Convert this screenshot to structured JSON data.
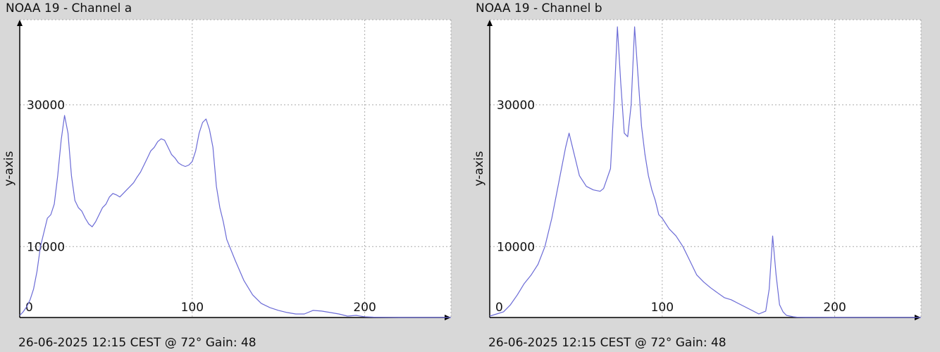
{
  "charts": [
    {
      "title": "NOAA 19 - Channel a",
      "footer": "26-06-2025 12:15 CEST @ 72° Gain: 48",
      "chart_data": {
        "type": "line",
        "title": "NOAA 19 - Channel a",
        "xlabel": "",
        "ylabel": "y-axis",
        "xlim": [
          0,
          250
        ],
        "ylim": [
          0,
          42000
        ],
        "grid": true,
        "x_ticks": [
          0,
          100,
          200
        ],
        "y_ticks": [
          10000,
          30000
        ],
        "color": "#6b6bd6",
        "series": [
          {
            "x": [
              0,
              2,
              4,
              6,
              8,
              10,
              12,
              14,
              16,
              18,
              20,
              22,
              24,
              26,
              28,
              30,
              32,
              34,
              36,
              38,
              40,
              42,
              44,
              46,
              48,
              50,
              52,
              54,
              56,
              58,
              60,
              62,
              64,
              66,
              68,
              70,
              72,
              74,
              76,
              78,
              80,
              82,
              84,
              86,
              88,
              90,
              92,
              94,
              96,
              98,
              100,
              102,
              104,
              106,
              108,
              110,
              112,
              114,
              116,
              118,
              120,
              125,
              130,
              135,
              140,
              145,
              150,
              155,
              160,
              165,
              170,
              175,
              180,
              185,
              190,
              195,
              200,
              205,
              210,
              215,
              220,
              225,
              230,
              235,
              240,
              245,
              250
            ],
            "y": [
              300,
              800,
              1500,
              2500,
              4000,
              6500,
              10000,
              12000,
              14000,
              14500,
              16000,
              20000,
              25000,
              28500,
              26000,
              20000,
              16500,
              15500,
              15000,
              14000,
              13200,
              12800,
              13500,
              14500,
              15500,
              16000,
              17000,
              17500,
              17300,
              17000,
              17500,
              18000,
              18500,
              19000,
              19800,
              20500,
              21500,
              22500,
              23500,
              24000,
              24800,
              25200,
              25000,
              24000,
              23000,
              22500,
              21800,
              21500,
              21300,
              21500,
              22000,
              23500,
              26000,
              27500,
              28000,
              26500,
              24000,
              18500,
              15500,
              13500,
              11000,
              8000,
              5200,
              3200,
              2000,
              1400,
              1000,
              700,
              500,
              500,
              1000,
              900,
              700,
              500,
              200,
              300,
              100,
              50,
              30,
              20,
              10,
              10,
              10,
              10,
              10,
              10,
              10
            ]
          }
        ]
      }
    },
    {
      "title": "NOAA 19 - Channel b",
      "footer": "26-06-2025 12:15 CEST @ 72° Gain: 48",
      "chart_data": {
        "type": "line",
        "title": "NOAA 19 - Channel b",
        "xlabel": "",
        "ylabel": "y-axis",
        "xlim": [
          0,
          250
        ],
        "ylim": [
          0,
          42000
        ],
        "grid": true,
        "x_ticks": [
          0,
          100,
          200
        ],
        "y_ticks": [
          10000,
          30000
        ],
        "color": "#6b6bd6",
        "series": [
          {
            "x": [
              0,
              4,
              8,
              12,
              16,
              20,
              24,
              28,
              32,
              36,
              40,
              44,
              46,
              48,
              50,
              52,
              56,
              60,
              64,
              66,
              70,
              72,
              74,
              76,
              78,
              80,
              82,
              84,
              86,
              88,
              90,
              92,
              94,
              96,
              98,
              100,
              104,
              108,
              112,
              116,
              120,
              124,
              128,
              132,
              136,
              140,
              144,
              148,
              152,
              156,
              160,
              162,
              164,
              166,
              168,
              170,
              172,
              174,
              176,
              178,
              180,
              190,
              200,
              210,
              220,
              230,
              240,
              250
            ],
            "y": [
              200,
              500,
              800,
              1800,
              3200,
              4800,
              6000,
              7500,
              10000,
              14000,
              19000,
              24000,
              26000,
              24000,
              22000,
              20000,
              18500,
              18000,
              17800,
              18200,
              21000,
              30000,
              41000,
              33000,
              26000,
              25500,
              30000,
              41000,
              34000,
              27000,
              23000,
              20000,
              18000,
              16500,
              14500,
              14000,
              12500,
              11500,
              10000,
              8000,
              6000,
              5000,
              4200,
              3500,
              2800,
              2500,
              2000,
              1500,
              1000,
              500,
              900,
              4000,
              11500,
              6000,
              1800,
              800,
              300,
              200,
              100,
              50,
              30,
              20,
              10,
              10,
              10,
              10,
              10,
              10
            ]
          }
        ]
      }
    }
  ]
}
